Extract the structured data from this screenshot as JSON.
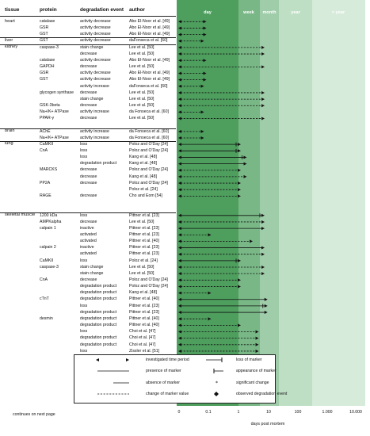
{
  "headers": {
    "tissue": "tissue",
    "protein": "protein",
    "event": "degradation event",
    "author": "author"
  },
  "zones": [
    {
      "label": "day",
      "color": "#4e9e5e"
    },
    {
      "label": "week",
      "color": "#79b886"
    },
    {
      "label": "month",
      "color": "#9fcca9"
    },
    {
      "label": "year",
      "color": "#bfdfc5"
    },
    {
      "label": "> year",
      "color": "#d6ebd9"
    }
  ],
  "axis": {
    "ticks": [
      "0",
      "0.1",
      "1",
      "10",
      "100",
      "1.000",
      "10.000"
    ],
    "xlabel": "days post mortem"
  },
  "continues": "continues on next page",
  "legend": [
    {
      "key": "period",
      "label": "investigated time period"
    },
    {
      "key": "loss",
      "label": "loss of marker"
    },
    {
      "key": "presence",
      "label": "presence of marker"
    },
    {
      "key": "appearance",
      "label": "appearance of marker"
    },
    {
      "key": "absence",
      "label": "absence of marker"
    },
    {
      "key": "significant",
      "label": "significant change"
    },
    {
      "key": "change",
      "label": "change of marker value"
    },
    {
      "key": "observed",
      "label": "observed degradation event"
    }
  ],
  "tissue_groups": [
    {
      "name": "heart",
      "start": 0
    },
    {
      "name": "liver",
      "start": 3
    },
    {
      "name": "kidney",
      "start": 4
    },
    {
      "name": "brain",
      "start": 17
    },
    {
      "name": "lung",
      "start": 19
    },
    {
      "name": "skeletal muscle",
      "start": 30
    }
  ],
  "rows": [
    {
      "protein": "catalase",
      "event": "activity decrease",
      "author": "Abo El-Noor et al. [49]",
      "bar": "change",
      "end": 0.42
    },
    {
      "protein": "GSR",
      "event": "activity decrease",
      "author": "Abo El-Noor et al. [49]",
      "bar": "change",
      "end": 0.42
    },
    {
      "protein": "GST",
      "event": "activity decrease",
      "author": "Abo El-Noor et al. [49]",
      "bar": "change",
      "end": 0.42
    },
    {
      "protein": "GST",
      "event": "activity decrease",
      "author": "daFonseca et al. [60]",
      "bar": "change",
      "end": 0.38
    },
    {
      "protein": "caspase-3",
      "event": "stain change",
      "author": "Lee et al. [50]",
      "bar": "change",
      "end": 1.4
    },
    {
      "protein": "",
      "event": "decrease",
      "author": "Lee et al. [50]",
      "bar": "change",
      "end": 1.4
    },
    {
      "protein": "catalase",
      "event": "activity decrease",
      "author": "Abo El-Noor et al. [49]",
      "bar": "change",
      "end": 0.42
    },
    {
      "protein": "GAPDH",
      "event": "decrease",
      "author": "Lee et al. [50]",
      "bar": "change",
      "end": 1.4
    },
    {
      "protein": "GSR",
      "event": "activity decrease",
      "author": "Abo El-Noor et al. [49]",
      "bar": "change",
      "end": 0.42
    },
    {
      "protein": "GST",
      "event": "activity decrease",
      "author": "Abo El-Noor et al. [49]",
      "bar": "change",
      "end": 0.42
    },
    {
      "protein": "",
      "event": "activity increase",
      "author": "daFonseca et al. [60]",
      "bar": "change",
      "end": 0.38
    },
    {
      "protein": "glycogen synthase",
      "event": "decrease",
      "author": "Lee et al. [50]",
      "bar": "change",
      "end": 1.4
    },
    {
      "protein": "",
      "event": "stain change",
      "author": "Lee et al. [50]",
      "bar": "change",
      "end": 1.4
    },
    {
      "protein": "GSK-3beta",
      "event": "decrease",
      "author": "Lee et al. [50]",
      "bar": "change",
      "end": 1.4
    },
    {
      "protein": "Na+/K+ ATPase",
      "event": "activity increase",
      "author": "da Fonseca et al. [60]",
      "bar": "change",
      "end": 0.38
    },
    {
      "protein": "PPAR-γ",
      "event": "decrease",
      "author": "Lee et al. [50]",
      "bar": "change",
      "end": 1.4
    },
    {
      "protein": "",
      "event": "",
      "author": "",
      "bar": "none",
      "end": 0
    },
    {
      "protein": "AChE",
      "event": "activity increase",
      "author": "da Fonseca et al. [60]",
      "bar": "change",
      "end": 0.38
    },
    {
      "protein": "Na+/K+ ATPase",
      "event": "activity increase",
      "author": "da Fonseca et al. [60]",
      "bar": "change",
      "end": 0.38
    },
    {
      "protein": "CaMKII",
      "event": "loss",
      "author": "Poloz and O'Day [24]",
      "bar": "solid",
      "end": 1.0,
      "loss": true
    },
    {
      "protein": "CnA",
      "event": "loss",
      "author": "Poloz and O'Day [24]",
      "bar": "solid",
      "end": 1.0,
      "loss": true
    },
    {
      "protein": "",
      "event": "loss",
      "author": "Kang et al. [48]",
      "bar": "solid",
      "end": 1.1,
      "loss": true
    },
    {
      "protein": "",
      "event": "degradation product",
      "author": "Kang et al. [48]",
      "bar": "solid",
      "end": 1.1
    },
    {
      "protein": "MARCKS",
      "event": "decrease",
      "author": "Poloz and O'Day [24]",
      "bar": "change",
      "end": 1.0
    },
    {
      "protein": "",
      "event": "decrease",
      "author": "Kang et al. [48]",
      "bar": "change",
      "end": 1.1
    },
    {
      "protein": "PP2A",
      "event": "decrease",
      "author": "Poloz and O'Day [24]",
      "bar": "change",
      "end": 1.0
    },
    {
      "protein": "",
      "event": "",
      "author": "Poloz et al. [24]",
      "bar": "change",
      "end": 1.0
    },
    {
      "protein": "RAGE",
      "event": "decrease",
      "author": "Cho and Eom [54]",
      "bar": "change",
      "end": 1.0
    },
    {
      "protein": "",
      "event": "",
      "author": "",
      "bar": "none",
      "end": 0
    },
    {
      "protein": "",
      "event": "",
      "author": "",
      "bar": "none",
      "end": 0
    },
    {
      "protein": "1200 kDa",
      "event": "loss",
      "author": "Pittner et al. [23]",
      "bar": "solid",
      "end": 1.4,
      "loss": true
    },
    {
      "protein": "AMPKalpha",
      "event": "decrease",
      "author": "Lee et al. [50]",
      "bar": "change",
      "end": 1.4
    },
    {
      "protein": "calpain 1",
      "event": "inactive",
      "author": "Pittner et al. [23]",
      "bar": "solid",
      "end": 1.4
    },
    {
      "protein": "",
      "event": "activated",
      "author": "Pittner et al. [23]",
      "bar": "change",
      "end": 0.5
    },
    {
      "protein": "",
      "event": "activated",
      "author": "Pittner et al. [40]",
      "bar": "change",
      "end": 1.2
    },
    {
      "protein": "calpain 2",
      "event": "inactive",
      "author": "Pittner et al. [23]",
      "bar": "solid",
      "end": 1.4
    },
    {
      "protein": "",
      "event": "activated",
      "author": "Pittner et al. [23]",
      "bar": "change",
      "end": 1.4
    },
    {
      "protein": "CaMKII",
      "event": "loss",
      "author": "Poloz et al. [24]",
      "bar": "solid",
      "end": 1.0,
      "loss": true
    },
    {
      "protein": "caspase-3",
      "event": "stain change",
      "author": "Lee et al. [50]",
      "bar": "change",
      "end": 1.4
    },
    {
      "protein": "",
      "event": "stain change",
      "author": "Lee et al. [50]",
      "bar": "change",
      "end": 1.4
    },
    {
      "protein": "CnA",
      "event": "decrease",
      "author": "Poloz and O'Day [24]",
      "bar": "change",
      "end": 1.0
    },
    {
      "protein": "",
      "event": "degradation product",
      "author": "Poloz and O'Day [24]",
      "bar": "change",
      "end": 1.0
    },
    {
      "protein": "",
      "event": "degradation product",
      "author": "Kang et al. [48]",
      "bar": "change",
      "end": 0.5
    },
    {
      "protein": "cTnT",
      "event": "degradation product",
      "author": "Pittner et al. [40]",
      "bar": "solid",
      "end": 1.45
    },
    {
      "protein": "",
      "event": "loss",
      "author": "Pittner et al. [23]",
      "bar": "solid",
      "end": 1.45,
      "loss": true
    },
    {
      "protein": "",
      "event": "degradation product",
      "author": "Pittner et al. [23]",
      "bar": "solid",
      "end": 1.45
    },
    {
      "protein": "desmin",
      "event": "degradation product",
      "author": "Pittner et al. [40]",
      "bar": "change",
      "end": 0.5
    },
    {
      "protein": "",
      "event": "degradation product",
      "author": "Pittner et al. [40]",
      "bar": "change",
      "end": 1.0
    },
    {
      "protein": "",
      "event": "loss",
      "author": "Choi et al. [47]",
      "bar": "change",
      "end": 1.3
    },
    {
      "protein": "",
      "event": "degradation product",
      "author": "Choi et al. [47]",
      "bar": "change",
      "end": 1.3
    },
    {
      "protein": "",
      "event": "degradation product",
      "author": "Choi et al. [47]",
      "bar": "change",
      "end": 1.3
    },
    {
      "protein": "",
      "event": "loss",
      "author": "Zissler et al. [51]",
      "bar": "change",
      "end": 1.3
    },
    {
      "protein": "",
      "event": "degradation product",
      "author": "Zissler et al. [51]",
      "bar": "change",
      "end": 1.3
    },
    {
      "protein": "",
      "event": "degradation product",
      "author": "Zissler et al. [51]",
      "bar": "change",
      "end": 1.3
    },
    {
      "protein": "",
      "event": "degradation product",
      "author": "Zissler et al. [51]",
      "bar": "change",
      "end": 1.3
    },
    {
      "protein": "",
      "event": "loss",
      "author": "Pittner et al. [23]",
      "bar": "solid",
      "end": 1.45,
      "loss": true
    },
    {
      "protein": "",
      "event": "degradation product",
      "author": "Pittner et al. [23]",
      "bar": "solid",
      "end": 1.45
    },
    {
      "protein": "",
      "event": "degradation product",
      "author": "Pittner et al. [23]",
      "bar": "solid",
      "end": 1.45
    }
  ]
}
